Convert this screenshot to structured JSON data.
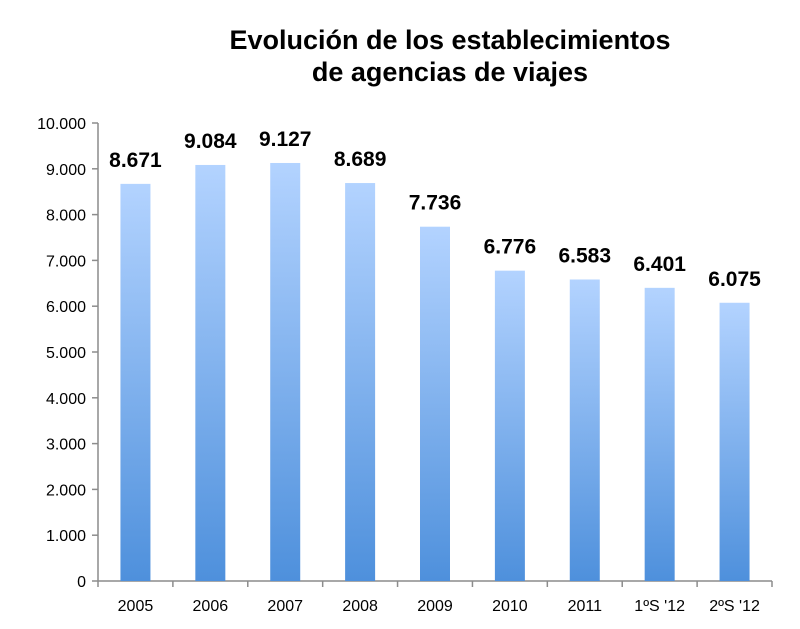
{
  "title_line1": "Evolución de los establecimientos",
  "title_line2": "de agencias de viajes",
  "colors": {
    "bar_top": "#b3d3ff",
    "bar_bottom": "#4e90dc",
    "axis": "#8c8c8c"
  },
  "chart_data": {
    "type": "bar",
    "title": "Evolución de los establecimientos de agencias de viajes",
    "xlabel": "",
    "ylabel": "",
    "categories": [
      "2005",
      "2006",
      "2007",
      "2008",
      "2009",
      "2010",
      "2011",
      "1ºS '12",
      "2ºS '12"
    ],
    "values": [
      8671,
      9084,
      9127,
      8689,
      7736,
      6776,
      6583,
      6401,
      6075
    ],
    "value_labels": [
      "8.671",
      "9.084",
      "9.127",
      "8.689",
      "7.736",
      "6.776",
      "6.583",
      "6.401",
      "6.075"
    ],
    "ylim": [
      0,
      10000
    ],
    "yticks": [
      0,
      1000,
      2000,
      3000,
      4000,
      5000,
      6000,
      7000,
      8000,
      9000,
      10000
    ],
    "ytick_labels": [
      "0",
      "1.000",
      "2.000",
      "3.000",
      "4.000",
      "5.000",
      "6.000",
      "7.000",
      "8.000",
      "9.000",
      "10.000"
    ],
    "grid": false,
    "legend": "none"
  }
}
